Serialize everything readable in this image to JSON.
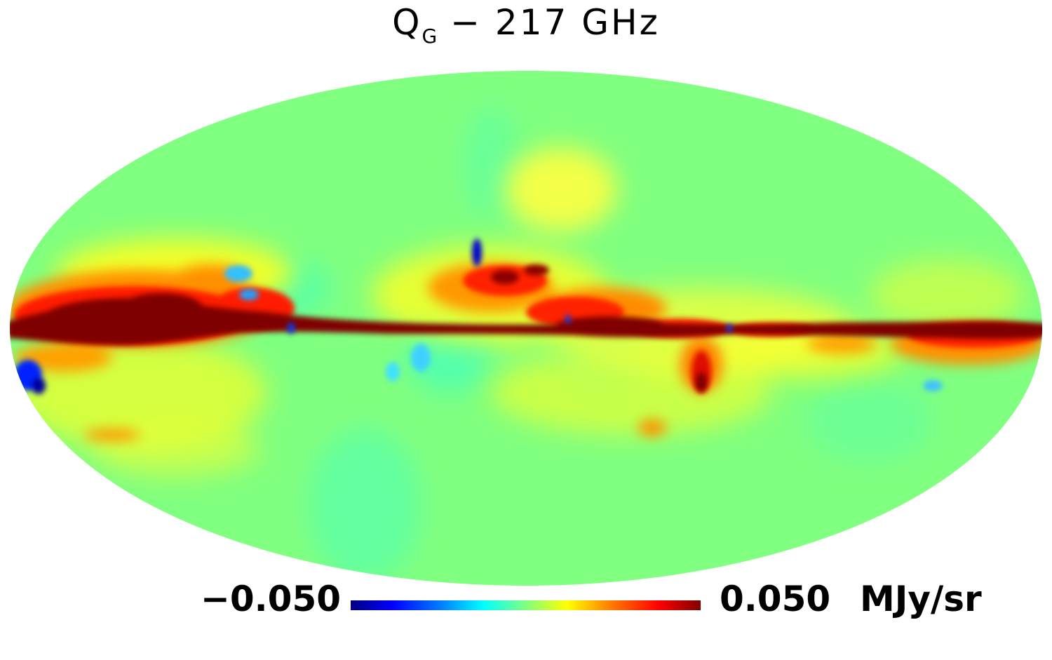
{
  "title": {
    "main": "Q",
    "sub": "G",
    "rest": " − 217 GHz"
  },
  "colorbar": {
    "min_label": "−0.050",
    "max_label": "0.050",
    "unit": "MJy/sr",
    "colormap": [
      "#00007f",
      "#0000ff",
      "#00ffff",
      "#80ff80",
      "#ffff00",
      "#ff0000",
      "#7f0000"
    ]
  },
  "map": {
    "projection": "mollweide",
    "background_color": "#80ff80",
    "saturated_color": "#7f0000"
  }
}
